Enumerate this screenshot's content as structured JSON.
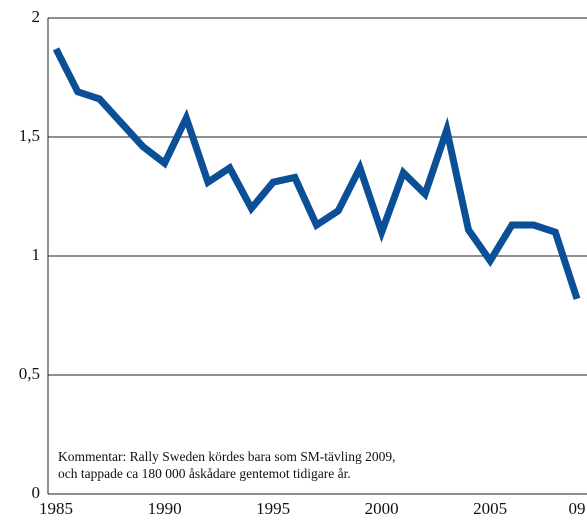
{
  "chart_data": {
    "type": "line",
    "annotation": [
      "Kommentar: Rally Sweden kördes bara som SM-tävling 2009,",
      "och tappade ca 180 000 åskådare gentemot tidigare år."
    ],
    "x": [
      1985,
      1986,
      1987,
      1988,
      1989,
      1990,
      1991,
      1992,
      1993,
      1994,
      1995,
      1996,
      1997,
      1998,
      1999,
      2000,
      2001,
      2002,
      2003,
      2004,
      2005,
      2006,
      2007,
      2008,
      2009
    ],
    "series": [
      {
        "color": "#0b4f97",
        "values": [
          1.87,
          1.69,
          1.66,
          1.56,
          1.46,
          1.39,
          1.58,
          1.31,
          1.37,
          1.2,
          1.31,
          1.33,
          1.13,
          1.19,
          1.37,
          1.1,
          1.35,
          1.26,
          1.53,
          1.11,
          0.98,
          1.13,
          1.13,
          1.1,
          0.82
        ]
      }
    ],
    "xlim": [
      1984.63,
      2009.46
    ],
    "xticks": [
      1985,
      1990,
      1995,
      2000,
      2005,
      {
        "value": 2009,
        "label": "09"
      }
    ],
    "ylim": [
      0,
      2
    ],
    "yticks": [
      0,
      {
        "value": 0.5,
        "label": "0,5"
      },
      1,
      {
        "value": 1.5,
        "label": "1,5"
      },
      2
    ],
    "grid": true
  }
}
